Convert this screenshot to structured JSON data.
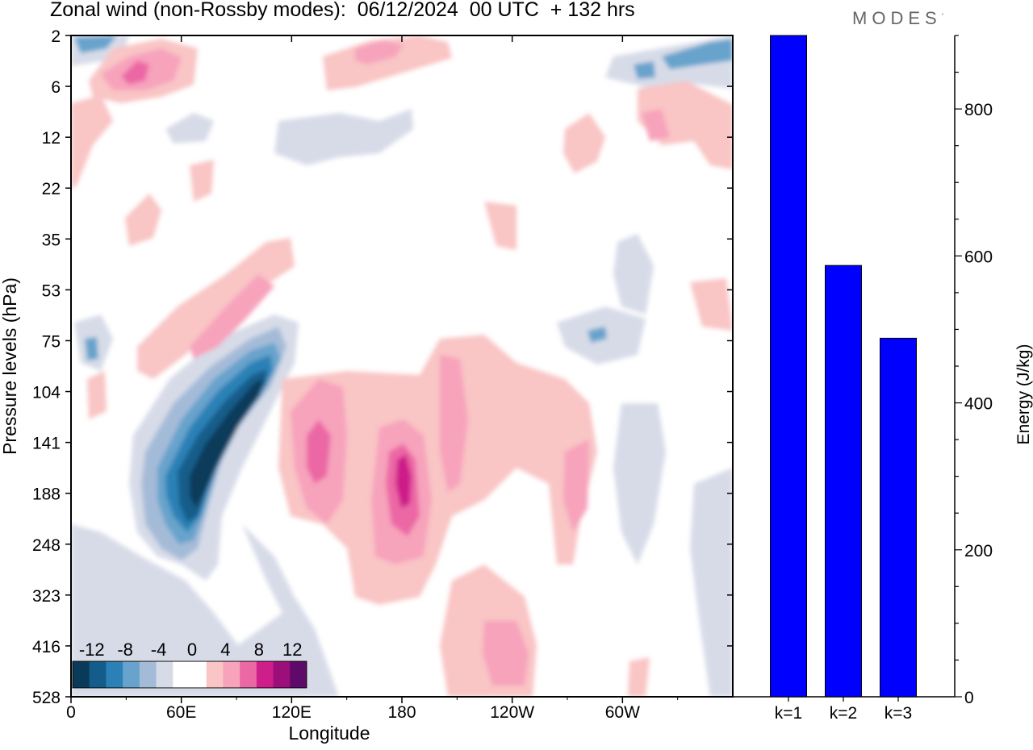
{
  "figure": {
    "title": "Zonal wind (non-Rossby modes):  06/12/2024  00 UTC  + 132 hrs",
    "brand": "MODES",
    "brand_mark": "°"
  },
  "chart_data": [
    {
      "type": "heatmap",
      "title": "Zonal wind (non-Rossby modes):  06/12/2024  00 UTC  + 132 hrs",
      "xlabel": "Longitude",
      "ylabel": "Pressure levels (hPa)",
      "x_ticks": [
        "0",
        "60E",
        "120E",
        "180",
        "120W",
        "60W"
      ],
      "x_tick_values": [
        0,
        60,
        120,
        180,
        240,
        300
      ],
      "xlim": [
        0,
        360
      ],
      "y_ticks": [
        "2",
        "6",
        "12",
        "22",
        "35",
        "53",
        "75",
        "104",
        "141",
        "188",
        "248",
        "323",
        "416",
        "528"
      ],
      "y_scale": "pressure levels (non-uniform)",
      "colorbar": {
        "tick_labels": [
          "-12",
          "-8",
          "-4",
          "0",
          "4",
          "8",
          "12"
        ],
        "colors": [
          "#0a3a5a",
          "#145d8a",
          "#2b81b6",
          "#67a3cc",
          "#a4bbd8",
          "#d7dbe8",
          "#ffffff",
          "#ffffff",
          "#f9c5c5",
          "#f7a3bc",
          "#ec68a5",
          "#cd1e8a",
          "#9c0e7a",
          "#5e0a6a"
        ]
      },
      "features": [
        {
          "name": "easterly jet core",
          "sign": "negative",
          "lon_range": [
            40,
            115
          ],
          "level_range": [
            "75",
            "248"
          ],
          "min_value": -14
        },
        {
          "name": "westerly maximum",
          "sign": "positive",
          "lon_range": [
            165,
            195
          ],
          "level_range": [
            "104",
            "248"
          ],
          "max_value": 12
        },
        {
          "name": "westerly band",
          "sign": "positive",
          "lon_range": [
            115,
            150
          ],
          "level_range": [
            "104",
            "248"
          ],
          "max_value": 8
        },
        {
          "name": "upper-level westerly patch",
          "sign": "positive",
          "lon_range": [
            15,
            50
          ],
          "level_range": [
            "2",
            "6"
          ],
          "max_value": 8
        },
        {
          "name": "upper-level easterly patch",
          "sign": "negative",
          "lon_range": [
            300,
            360
          ],
          "level_range": [
            "2",
            "6"
          ],
          "min_value": -6
        }
      ]
    },
    {
      "type": "bar",
      "categories": [
        "k=1",
        "k=2",
        "k=3"
      ],
      "values": [
        900,
        587,
        488
      ],
      "ylabel": "Energy (J/kg)",
      "y_ticks": [
        "0",
        "200",
        "400",
        "600",
        "800"
      ],
      "ylim": [
        0,
        900
      ],
      "bar_color": "#0000ff"
    }
  ]
}
